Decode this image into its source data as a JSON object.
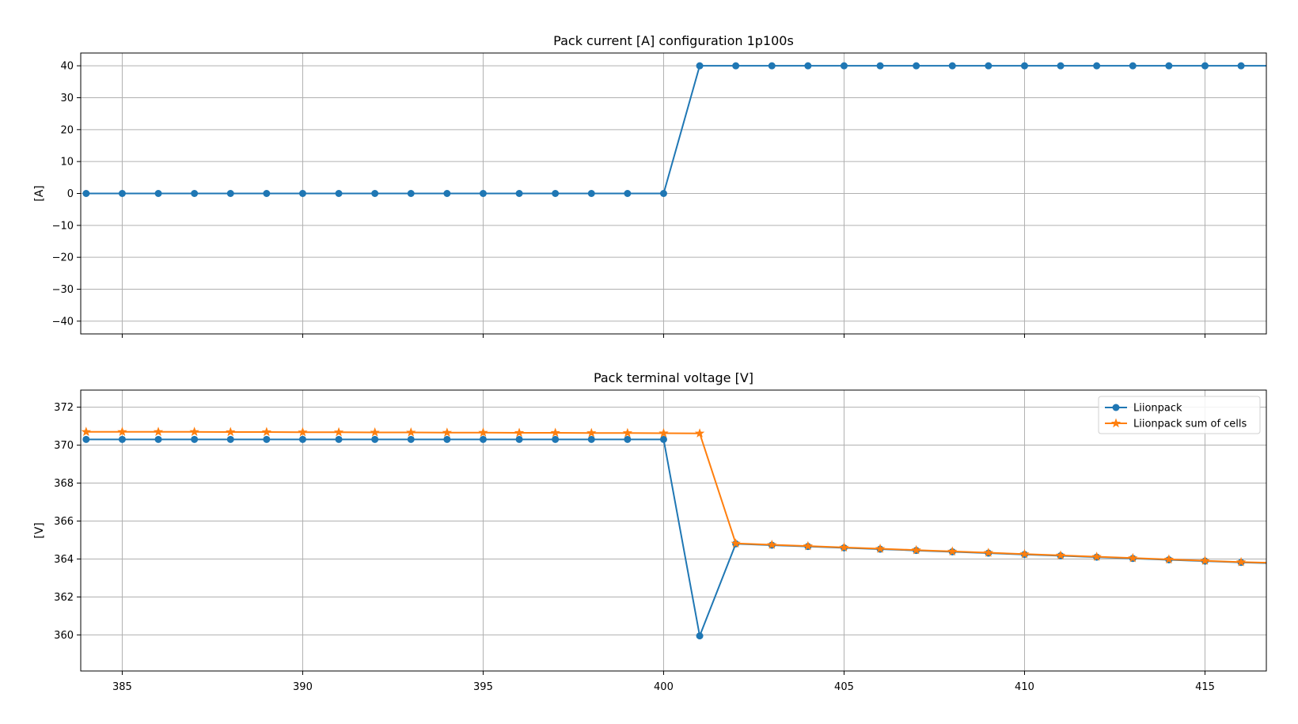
{
  "chart_data": [
    {
      "type": "line",
      "title": "Pack current [A] configuration 1p100s",
      "xlabel": "",
      "ylabel": "[A]",
      "xlim": [
        383.85,
        416.7
      ],
      "ylim": [
        -44,
        44
      ],
      "xticks": [
        385,
        390,
        395,
        400,
        405,
        410,
        415
      ],
      "yticks": [
        -40,
        -30,
        -20,
        -10,
        0,
        10,
        20,
        30,
        40
      ],
      "ytick_labels": [
        "−40",
        "−30",
        "−20",
        "−10",
        "0",
        "10",
        "20",
        "30",
        "40"
      ],
      "show_xtick_labels": false,
      "grid": true,
      "legend": false,
      "series": [
        {
          "color": "#1f77b4",
          "marker": "circle",
          "x": [
            384,
            385,
            386,
            387,
            388,
            389,
            390,
            391,
            392,
            393,
            394,
            395,
            396,
            397,
            398,
            399,
            400,
            401,
            402,
            403,
            404,
            405,
            406,
            407,
            408,
            409,
            410,
            411,
            412,
            413,
            414,
            415,
            416,
            417
          ],
          "y": [
            0,
            0,
            0,
            0,
            0,
            0,
            0,
            0,
            0,
            0,
            0,
            0,
            0,
            0,
            0,
            0,
            0,
            40,
            40,
            40,
            40,
            40,
            40,
            40,
            40,
            40,
            40,
            40,
            40,
            40,
            40,
            40,
            40,
            40
          ]
        }
      ]
    },
    {
      "type": "line",
      "title": "Pack terminal voltage [V]",
      "xlabel": "",
      "ylabel": "[V]",
      "xlim": [
        383.85,
        416.7
      ],
      "ylim": [
        358.1,
        372.9
      ],
      "xticks": [
        385,
        390,
        395,
        400,
        405,
        410,
        415
      ],
      "yticks": [
        360,
        362,
        364,
        366,
        368,
        370,
        372
      ],
      "ytick_labels": [
        "360",
        "362",
        "364",
        "366",
        "368",
        "370",
        "372"
      ],
      "show_xtick_labels": true,
      "grid": true,
      "legend": true,
      "legend_position": "top-right",
      "series": [
        {
          "name": "Liionpack",
          "color": "#1f77b4",
          "marker": "circle",
          "x": [
            384,
            385,
            386,
            387,
            388,
            389,
            390,
            391,
            392,
            393,
            394,
            395,
            396,
            397,
            398,
            399,
            400,
            401,
            402,
            403,
            404,
            405,
            406,
            407,
            408,
            409,
            410,
            411,
            412,
            413,
            414,
            415,
            416,
            417
          ],
          "y": [
            370.3,
            370.3,
            370.3,
            370.3,
            370.3,
            370.3,
            370.3,
            370.3,
            370.3,
            370.3,
            370.3,
            370.3,
            370.3,
            370.3,
            370.3,
            370.3,
            370.3,
            359.95,
            364.8,
            364.73,
            364.66,
            364.59,
            364.52,
            364.45,
            364.38,
            364.31,
            364.24,
            364.17,
            364.1,
            364.03,
            363.96,
            363.89,
            363.82,
            363.77
          ]
        },
        {
          "name": "Liionpack sum of cells",
          "color": "#ff7f0e",
          "marker": "star",
          "x": [
            384,
            385,
            386,
            387,
            388,
            389,
            390,
            391,
            392,
            393,
            394,
            395,
            396,
            397,
            398,
            399,
            400,
            401,
            402,
            403,
            404,
            405,
            406,
            407,
            408,
            409,
            410,
            411,
            412,
            413,
            414,
            415,
            416,
            417
          ],
          "y": [
            370.7,
            370.7,
            370.7,
            370.7,
            370.69,
            370.69,
            370.68,
            370.68,
            370.67,
            370.67,
            370.66,
            370.66,
            370.65,
            370.65,
            370.64,
            370.64,
            370.63,
            370.62,
            364.82,
            364.75,
            364.68,
            364.61,
            364.54,
            364.47,
            364.4,
            364.33,
            364.26,
            364.19,
            364.12,
            364.05,
            363.98,
            363.91,
            363.84,
            363.79
          ]
        }
      ]
    }
  ]
}
